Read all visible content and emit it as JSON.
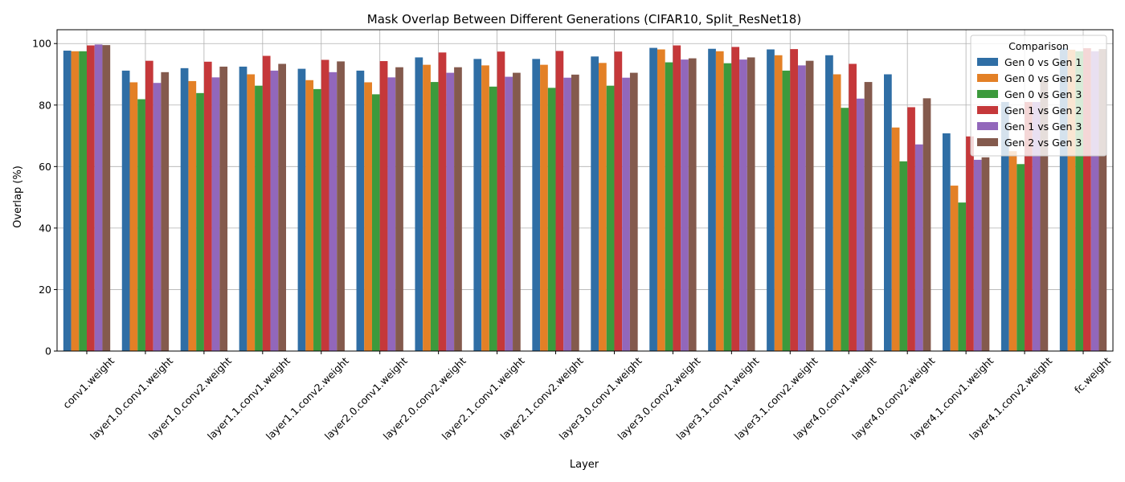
{
  "chart_data": {
    "type": "bar",
    "title": "Mask Overlap Between Different Generations (CIFAR10, Split_ResNet18)",
    "xlabel": "Layer",
    "ylabel": "Overlap (%)",
    "ylim": [
      0,
      104.5
    ],
    "yticks": [
      "0",
      "20",
      "40",
      "60",
      "80",
      "100"
    ],
    "grid": true,
    "legend": {
      "title": "Comparison",
      "placement": "top-right"
    },
    "categories": [
      "conv1.weight",
      "layer1.0.conv1.weight",
      "layer1.0.conv2.weight",
      "layer1.1.conv1.weight",
      "layer1.1.conv2.weight",
      "layer2.0.conv1.weight",
      "layer2.0.conv2.weight",
      "layer2.1.conv1.weight",
      "layer2.1.conv2.weight",
      "layer3.0.conv1.weight",
      "layer3.0.conv2.weight",
      "layer3.1.conv1.weight",
      "layer3.1.conv2.weight",
      "layer4.0.conv1.weight",
      "layer4.0.conv2.weight",
      "layer4.1.conv1.weight",
      "layer4.1.conv2.weight",
      "fc.weight"
    ],
    "series": [
      {
        "name": "Gen 0 vs Gen 1",
        "color": "#2f6ea5",
        "values": [
          97.7,
          91.2,
          92.0,
          92.5,
          91.8,
          91.2,
          95.5,
          95.0,
          95.0,
          95.8,
          98.6,
          98.3,
          98.1,
          96.2,
          90.0,
          70.8,
          81.0,
          98.5
        ]
      },
      {
        "name": "Gen 0 vs Gen 2",
        "color": "#e38026",
        "values": [
          97.5,
          87.4,
          87.8,
          90.0,
          88.1,
          87.4,
          93.1,
          92.9,
          93.1,
          93.7,
          98.1,
          97.5,
          96.2,
          90.0,
          72.7,
          53.8,
          65.0,
          98.0
        ]
      },
      {
        "name": "Gen 0 vs Gen 3",
        "color": "#3c9a3c",
        "values": [
          97.5,
          81.9,
          83.9,
          86.3,
          85.2,
          83.5,
          87.5,
          86.0,
          85.6,
          86.3,
          93.9,
          93.6,
          91.2,
          79.1,
          61.7,
          48.3,
          60.8,
          97.5
        ]
      },
      {
        "name": "Gen 1 vs Gen 2",
        "color": "#c5383a",
        "values": [
          99.4,
          94.4,
          94.1,
          96.0,
          94.7,
          94.3,
          97.1,
          97.4,
          97.6,
          97.4,
          99.4,
          98.9,
          98.2,
          93.4,
          79.3,
          69.8,
          81.0,
          98.5
        ]
      },
      {
        "name": "Gen 1 vs Gen 3",
        "color": "#9267bb",
        "values": [
          99.7,
          87.2,
          89.0,
          91.2,
          90.7,
          89.0,
          90.5,
          89.2,
          88.9,
          88.9,
          94.8,
          94.8,
          92.9,
          82.1,
          67.2,
          62.2,
          81.0,
          97.5
        ]
      },
      {
        "name": "Gen 2 vs Gen 3",
        "color": "#845a4d",
        "values": [
          99.5,
          90.7,
          92.5,
          93.4,
          94.2,
          92.3,
          92.3,
          90.5,
          89.9,
          90.5,
          95.2,
          95.5,
          94.4,
          87.5,
          82.2,
          63.0,
          88.0,
          98.2
        ]
      }
    ]
  }
}
